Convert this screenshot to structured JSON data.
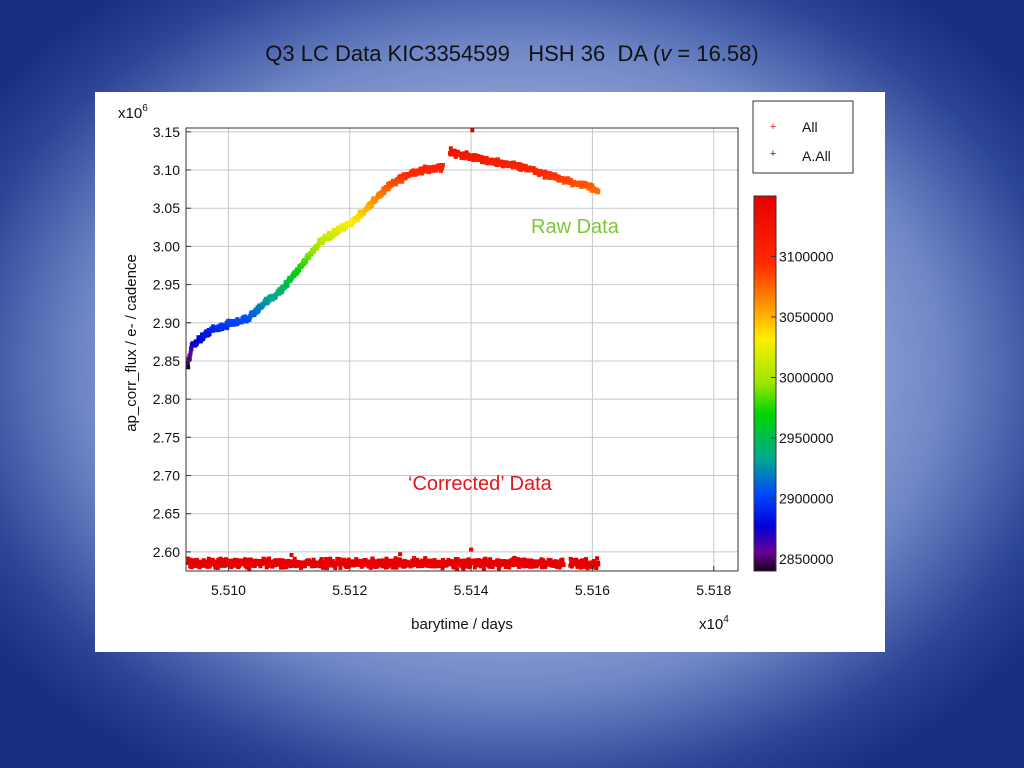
{
  "slide": {
    "title_prefix": "Q3 LC Data KIC3354599   HSH 36  DA (",
    "title_var": "v",
    "title_suffix": " = 16.58)"
  },
  "chart_data": {
    "type": "scatter",
    "title": "",
    "xlabel": "barytime / days",
    "ylabel": "ap_corr_flux / e- / cadence",
    "x_multiplier": {
      "base": "x10",
      "exp": "4"
    },
    "y_multiplier": {
      "base": "x10",
      "exp": "6"
    },
    "x_ticks": [
      "5.510",
      "5.512",
      "5.514",
      "5.516",
      "5.518"
    ],
    "y_ticks": [
      "2.60",
      "2.65",
      "2.70",
      "2.75",
      "2.80",
      "2.85",
      "2.90",
      "2.95",
      "3.00",
      "3.05",
      "3.10",
      "3.15"
    ],
    "xlim": [
      55093,
      55184
    ],
    "ylim": [
      2.575,
      3.155
    ],
    "grid": true,
    "legend": {
      "placement": "top-right",
      "entries": [
        {
          "label": "All",
          "color": "#cc2222"
        },
        {
          "label": "A.All",
          "color": "#1122cc"
        }
      ]
    },
    "annotations": [
      {
        "text": "Raw Data",
        "color": "#7dc63a"
      },
      {
        "text": "‘Corrected’ Data",
        "color": "#e8141e"
      }
    ],
    "colorbar": {
      "ticks": [
        "3100000",
        "3050000",
        "3000000",
        "2950000",
        "2900000",
        "2850000"
      ],
      "range": [
        2840000,
        3150000
      ]
    },
    "series": [
      {
        "name": "All",
        "trend": [
          [
            55093.3,
            2.845
          ],
          [
            55094,
            2.87
          ],
          [
            55097,
            2.89
          ],
          [
            55100,
            2.898
          ],
          [
            55103,
            2.905
          ],
          [
            55106,
            2.925
          ],
          [
            55109,
            2.945
          ],
          [
            55112,
            2.975
          ],
          [
            55115,
            3.005
          ],
          [
            55118,
            3.02
          ],
          [
            55121,
            3.035
          ],
          [
            55124,
            3.06
          ],
          [
            55127,
            3.083
          ],
          [
            55130,
            3.095
          ],
          [
            55133,
            3.101
          ],
          [
            55135.4,
            3.104
          ],
          [
            55136.5,
            3.124
          ],
          [
            55140,
            3.117
          ],
          [
            55144,
            3.11
          ],
          [
            55148,
            3.105
          ],
          [
            55152,
            3.095
          ],
          [
            55156,
            3.085
          ],
          [
            55159,
            3.08
          ],
          [
            55161,
            3.071
          ]
        ]
      },
      {
        "name": "Corrected",
        "level": 2.585,
        "spread": 0.008,
        "x_range": [
          55093.3,
          55161
        ],
        "gap": [
          55155.3,
          55156.3
        ]
      }
    ]
  }
}
